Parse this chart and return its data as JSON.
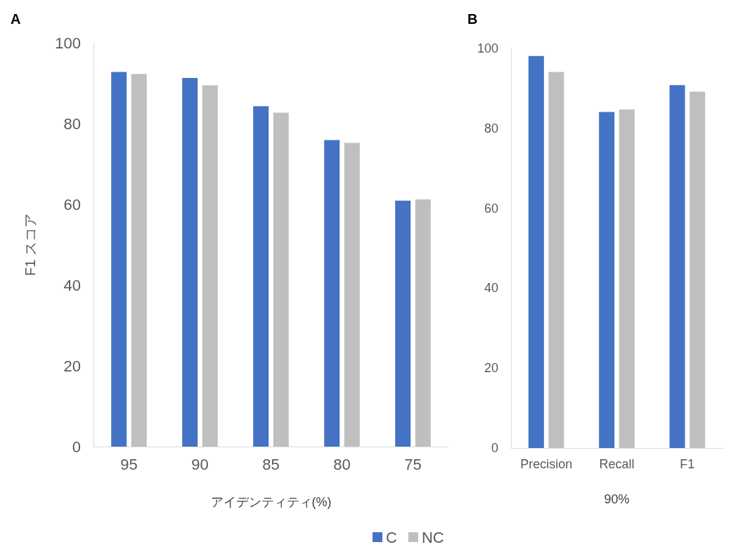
{
  "chart_data": [
    {
      "type": "bar",
      "title": "A",
      "xlabel": "アイデンティティ(%)",
      "ylabel": "F1 スコア",
      "categories": [
        "95",
        "90",
        "85",
        "80",
        "75"
      ],
      "series": [
        {
          "name": "C",
          "color": "#4472c4",
          "values": [
            92.8,
            91.3,
            84.3,
            75.9,
            60.9
          ]
        },
        {
          "name": "NC",
          "color": "#bfbfbf",
          "values": [
            92.3,
            89.5,
            82.7,
            75.2,
            61.2
          ]
        }
      ],
      "ylim": [
        0,
        100
      ],
      "yticks": [
        0,
        20,
        40,
        60,
        80,
        100
      ],
      "grid": false,
      "legend": "bottom"
    },
    {
      "type": "bar",
      "title": "B",
      "xlabel": "90%",
      "categories": [
        "Precision",
        "Recall",
        "F1"
      ],
      "series": [
        {
          "color": "#4472c4",
          "values": [
            98.1,
            84.1,
            90.8
          ]
        },
        {
          "color": "#bfbfbf",
          "values": [
            94.1,
            84.7,
            89.2
          ]
        }
      ],
      "ylim": [
        0,
        100
      ],
      "yticks": [
        0,
        20,
        40,
        60,
        80,
        100
      ],
      "grid": false
    }
  ]
}
